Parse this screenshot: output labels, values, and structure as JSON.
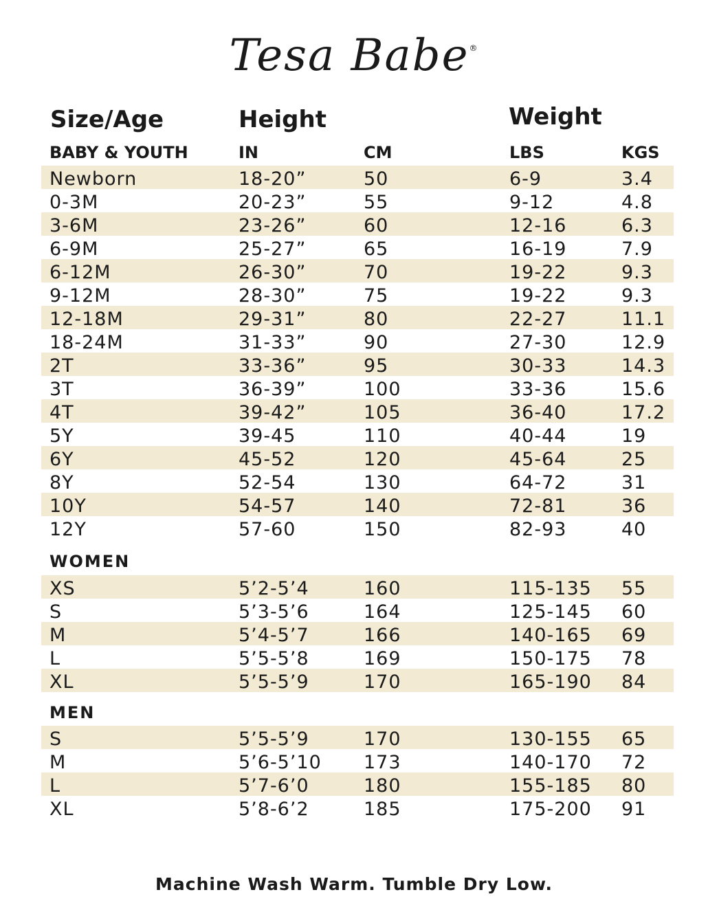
{
  "brand": {
    "name": "Tesa Babe",
    "registered_mark": "®"
  },
  "headers": {
    "size_age": "Size/Age",
    "height": "Height",
    "weight": "Weight",
    "baby_youth": "BABY & YOUTH",
    "in": "IN",
    "cm": "CM",
    "lbs": "LBS",
    "kgs": "KGS"
  },
  "colors": {
    "row_shade": "#f2ead3",
    "text": "#1a1a1a"
  },
  "baby_youth_rows": [
    {
      "size": "Newborn",
      "in": "18-20”",
      "cm": "50",
      "lbs": "6-9",
      "kgs": "3.4"
    },
    {
      "size": "0-3M",
      "in": "20-23”",
      "cm": "55",
      "lbs": "9-12",
      "kgs": "4.8"
    },
    {
      "size": "3-6M",
      "in": "23-26”",
      "cm": "60",
      "lbs": "12-16",
      "kgs": "6.3"
    },
    {
      "size": "6-9M",
      "in": "25-27”",
      "cm": "65",
      "lbs": "16-19",
      "kgs": "7.9"
    },
    {
      "size": "6-12M",
      "in": "26-30”",
      "cm": "70",
      "lbs": "19-22",
      "kgs": "9.3"
    },
    {
      "size": "9-12M",
      "in": "28-30”",
      "cm": "75",
      "lbs": "19-22",
      "kgs": "9.3"
    },
    {
      "size": "12-18M",
      "in": "29-31”",
      "cm": "80",
      "lbs": "22-27",
      "kgs": "11.1"
    },
    {
      "size": "18-24M",
      "in": "31-33”",
      "cm": "90",
      "lbs": "27-30",
      "kgs": "12.9"
    },
    {
      "size": "2T",
      "in": "33-36”",
      "cm": "95",
      "lbs": "30-33",
      "kgs": "14.3"
    },
    {
      "size": "3T",
      "in": "36-39”",
      "cm": "100",
      "lbs": "33-36",
      "kgs": "15.6"
    },
    {
      "size": "4T",
      "in": "39-42”",
      "cm": "105",
      "lbs": "36-40",
      "kgs": "17.2"
    },
    {
      "size": "5Y",
      "in": "39-45",
      "cm": "110",
      "lbs": "40-44",
      "kgs": "19"
    },
    {
      "size": "6Y",
      "in": "45-52",
      "cm": "120",
      "lbs": "45-64",
      "kgs": "25"
    },
    {
      "size": "8Y",
      "in": "52-54",
      "cm": "130",
      "lbs": "64-72",
      "kgs": "31"
    },
    {
      "size": "10Y",
      "in": "54-57",
      "cm": "140",
      "lbs": "72-81",
      "kgs": "36"
    },
    {
      "size": "12Y",
      "in": "57-60",
      "cm": "150",
      "lbs": "82-93",
      "kgs": "40"
    }
  ],
  "women": {
    "label": "WOMEN",
    "rows": [
      {
        "size": "XS",
        "in": "5’2-5’4",
        "cm": "160",
        "lbs": "115-135",
        "kgs": "55"
      },
      {
        "size": "S",
        "in": "5’3-5’6",
        "cm": "164",
        "lbs": "125-145",
        "kgs": "60"
      },
      {
        "size": "M",
        "in": "5’4-5’7",
        "cm": "166",
        "lbs": "140-165",
        "kgs": "69"
      },
      {
        "size": "L",
        "in": "5’5-5’8",
        "cm": "169",
        "lbs": "150-175",
        "kgs": "78"
      },
      {
        "size": "XL",
        "in": "5’5-5’9",
        "cm": "170",
        "lbs": "165-190",
        "kgs": "84"
      }
    ]
  },
  "men": {
    "label": "MEN",
    "rows": [
      {
        "size": "S",
        "in": "5’5-5’9",
        "cm": "170",
        "lbs": "130-155",
        "kgs": "65"
      },
      {
        "size": "M",
        "in": "5’6-5’10",
        "cm": "173",
        "lbs": "140-170",
        "kgs": "72"
      },
      {
        "size": "L",
        "in": "5’7-6’0",
        "cm": "180",
        "lbs": "155-185",
        "kgs": "80"
      },
      {
        "size": "XL",
        "in": "5’8-6’2",
        "cm": "185",
        "lbs": "175-200",
        "kgs": "91"
      }
    ]
  },
  "footer": "Machine Wash Warm. Tumble Dry Low."
}
